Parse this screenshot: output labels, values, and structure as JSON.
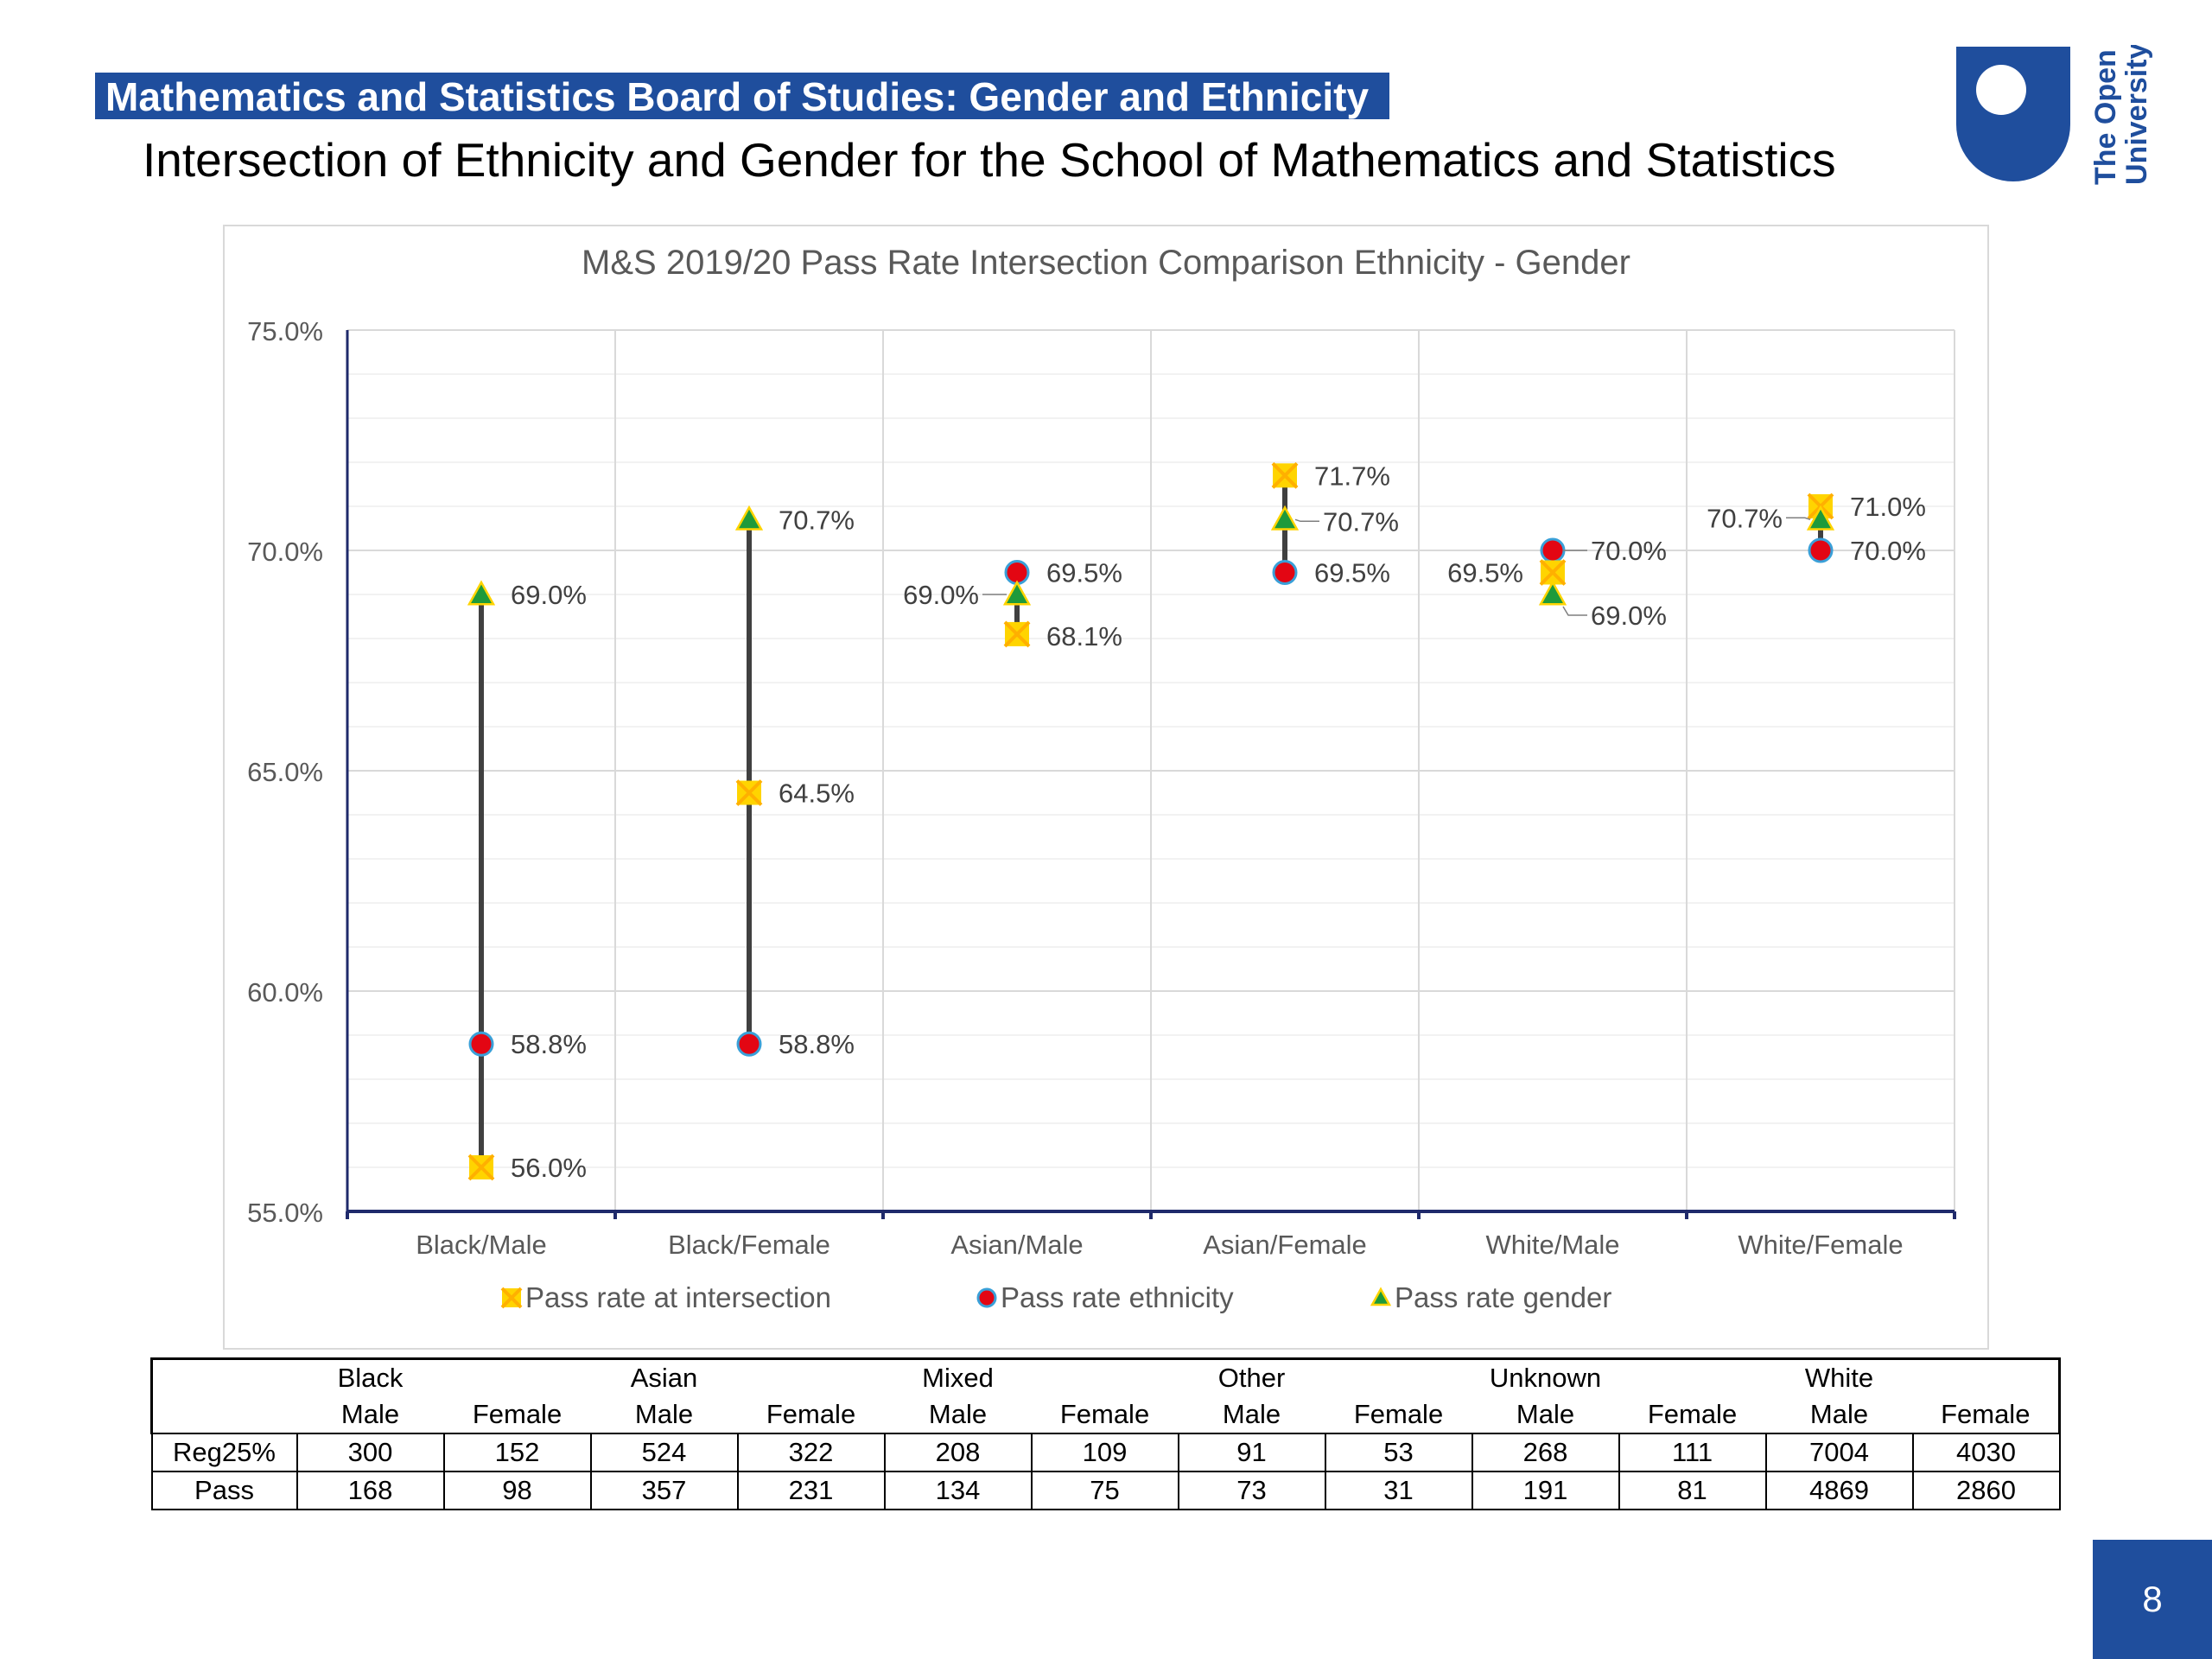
{
  "slide": {
    "title": "Mathematics and Statistics Board of Studies: Gender and Ethnicity",
    "subtitle": "Intersection of Ethnicity and Gender for the School of Mathematics and Statistics",
    "page_number": "8",
    "logo_text": [
      "The Open",
      "University"
    ]
  },
  "colors": {
    "brand_blue": "#1f4e9d",
    "intersection": "#ffd400",
    "intersection_x": "#ffb000",
    "ethnicity": "#e30613",
    "ethnicity_outline": "#3aa0d8",
    "gender": "#1e9a3b",
    "gender_outline": "#ffd400",
    "axis": "#1f2a6b"
  },
  "chart_data": {
    "type": "scatter",
    "title": "M&S 2019/20 Pass Rate Intersection Comparison Ethnicity - Gender",
    "categories": [
      "Black/Male",
      "Black/Female",
      "Asian/Male",
      "Asian/Female",
      "White/Male",
      "White/Female"
    ],
    "ylim": [
      55.0,
      75.0
    ],
    "yticks": [
      "55.0%",
      "60.0%",
      "65.0%",
      "70.0%",
      "75.0%"
    ],
    "grid": true,
    "legend_position": "bottom",
    "series": [
      {
        "name": "Pass rate at intersection",
        "marker": "x-square",
        "values": [
          56.0,
          64.5,
          68.1,
          71.7,
          69.5,
          71.0
        ],
        "labels": [
          "56.0%",
          "64.5%",
          "68.1%",
          "71.7%",
          "69.5%",
          "71.0%"
        ]
      },
      {
        "name": "Pass rate ethnicity",
        "marker": "circle",
        "values": [
          58.8,
          58.8,
          69.5,
          69.5,
          70.0,
          70.0
        ],
        "labels": [
          "58.8%",
          "58.8%",
          "69.5%",
          "69.5%",
          "70.0%",
          "70.0%"
        ]
      },
      {
        "name": "Pass rate gender",
        "marker": "triangle",
        "values": [
          69.0,
          70.7,
          69.0,
          70.7,
          69.0,
          70.7
        ],
        "labels": [
          "69.0%",
          "70.7%",
          "69.0%",
          "70.7%",
          "69.0%",
          "70.7%"
        ]
      }
    ]
  },
  "table": {
    "group_row": [
      "",
      "Black",
      "",
      "Asian",
      "",
      "Mixed",
      "",
      "Other",
      "",
      "Unknown",
      "",
      "White",
      ""
    ],
    "gender_row": [
      "",
      "Male",
      "Female",
      "Male",
      "Female",
      "Male",
      "Female",
      "Male",
      "Female",
      "Male",
      "Female",
      "Male",
      "Female"
    ],
    "rows": [
      [
        "Reg25%",
        "300",
        "152",
        "524",
        "322",
        "208",
        "109",
        "91",
        "53",
        "268",
        "111",
        "7004",
        "4030"
      ],
      [
        "Pass",
        "168",
        "98",
        "357",
        "231",
        "134",
        "75",
        "73",
        "31",
        "191",
        "81",
        "4869",
        "2860"
      ]
    ]
  }
}
